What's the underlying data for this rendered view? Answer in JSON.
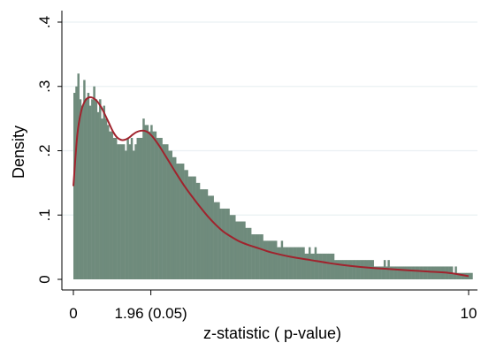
{
  "chart_data": {
    "type": "bar",
    "title": "",
    "xlabel": "z-statistic ( p-value)",
    "ylabel": "Density",
    "xlim": [
      0,
      10
    ],
    "ylim": [
      0,
      0.4
    ],
    "x_ticks": [
      {
        "value": 0,
        "label": "0"
      },
      {
        "value": 1.96,
        "label": "1.96 (0.05)"
      },
      {
        "value": 10,
        "label": "10"
      }
    ],
    "y_ticks": [
      {
        "value": 0,
        "label": "0"
      },
      {
        "value": 0.1,
        "label": ".1"
      },
      {
        "value": 0.2,
        "label": ".2"
      },
      {
        "value": 0.3,
        "label": ".3"
      },
      {
        "value": 0.4,
        "label": ".4"
      }
    ],
    "grid": true,
    "legend": "none",
    "colors": {
      "bars": "#6f8b7c",
      "density_line": "#a0232d",
      "grid": "#eaf0f3"
    },
    "histogram": {
      "name": "histogram",
      "bin_width": 0.05,
      "values": [
        0.29,
        0.3,
        0.32,
        0.28,
        0.27,
        0.31,
        0.28,
        0.29,
        0.27,
        0.28,
        0.3,
        0.28,
        0.26,
        0.28,
        0.25,
        0.27,
        0.25,
        0.24,
        0.23,
        0.23,
        0.22,
        0.22,
        0.21,
        0.21,
        0.21,
        0.21,
        0.2,
        0.22,
        0.21,
        0.22,
        0.2,
        0.21,
        0.22,
        0.22,
        0.22,
        0.25,
        0.24,
        0.24,
        0.23,
        0.24,
        0.23,
        0.23,
        0.22,
        0.22,
        0.22,
        0.21,
        0.21,
        0.21,
        0.2,
        0.2,
        0.19,
        0.19,
        0.18,
        0.18,
        0.18,
        0.18,
        0.17,
        0.17,
        0.16,
        0.16,
        0.16,
        0.16,
        0.15,
        0.15,
        0.14,
        0.14,
        0.14,
        0.14,
        0.13,
        0.13,
        0.13,
        0.12,
        0.12,
        0.12,
        0.11,
        0.11,
        0.11,
        0.11,
        0.11,
        0.1,
        0.1,
        0.1,
        0.09,
        0.09,
        0.09,
        0.09,
        0.09,
        0.08,
        0.08,
        0.08,
        0.07,
        0.07,
        0.07,
        0.07,
        0.07,
        0.07,
        0.06,
        0.06,
        0.06,
        0.06,
        0.06,
        0.06,
        0.06,
        0.05,
        0.05,
        0.06,
        0.05,
        0.05,
        0.05,
        0.05,
        0.05,
        0.05,
        0.05,
        0.05,
        0.05,
        0.05,
        0.05,
        0.04,
        0.04,
        0.05,
        0.04,
        0.04,
        0.05,
        0.04,
        0.04,
        0.04,
        0.04,
        0.04,
        0.04,
        0.04,
        0.04,
        0.04,
        0.03,
        0.03,
        0.03,
        0.03,
        0.03,
        0.03,
        0.03,
        0.03,
        0.03,
        0.03,
        0.03,
        0.03,
        0.03,
        0.03,
        0.03,
        0.03,
        0.03,
        0.03,
        0.03,
        0.03,
        0.02,
        0.02,
        0.02,
        0.02,
        0.02,
        0.03,
        0.02,
        0.03,
        0.02,
        0.02,
        0.02,
        0.02,
        0.02,
        0.02,
        0.02,
        0.02,
        0.02,
        0.02,
        0.02,
        0.02,
        0.02,
        0.02,
        0.02,
        0.02,
        0.02,
        0.02,
        0.02,
        0.02,
        0.02,
        0.02,
        0.02,
        0.02,
        0.02,
        0.02,
        0.02,
        0.02,
        0.02,
        0.02,
        0.02,
        0.02,
        0.01,
        0.02,
        0.01,
        0.01,
        0.01,
        0.01,
        0.01,
        0.01,
        0.01,
        0.01
      ]
    },
    "density_curve": {
      "name": "kernel density",
      "x": [
        0,
        0.1,
        0.2,
        0.3,
        0.4,
        0.5,
        0.6,
        0.7,
        0.8,
        0.9,
        1.0,
        1.1,
        1.2,
        1.3,
        1.4,
        1.5,
        1.6,
        1.7,
        1.8,
        1.9,
        2.0,
        2.1,
        2.2,
        2.4,
        2.6,
        2.8,
        3.0,
        3.2,
        3.4,
        3.6,
        3.8,
        4.0,
        4.2,
        4.4,
        4.6,
        4.8,
        5.0,
        5.5,
        6.0,
        6.5,
        7.0,
        7.5,
        8.0,
        8.5,
        9.0,
        9.5,
        10.0
      ],
      "y": [
        0.145,
        0.225,
        0.262,
        0.278,
        0.283,
        0.282,
        0.277,
        0.268,
        0.256,
        0.243,
        0.23,
        0.221,
        0.217,
        0.217,
        0.22,
        0.225,
        0.229,
        0.231,
        0.231,
        0.228,
        0.222,
        0.214,
        0.205,
        0.185,
        0.165,
        0.146,
        0.129,
        0.113,
        0.098,
        0.085,
        0.074,
        0.066,
        0.059,
        0.054,
        0.05,
        0.046,
        0.042,
        0.035,
        0.03,
        0.025,
        0.021,
        0.018,
        0.016,
        0.014,
        0.012,
        0.01,
        0.005
      ]
    }
  }
}
